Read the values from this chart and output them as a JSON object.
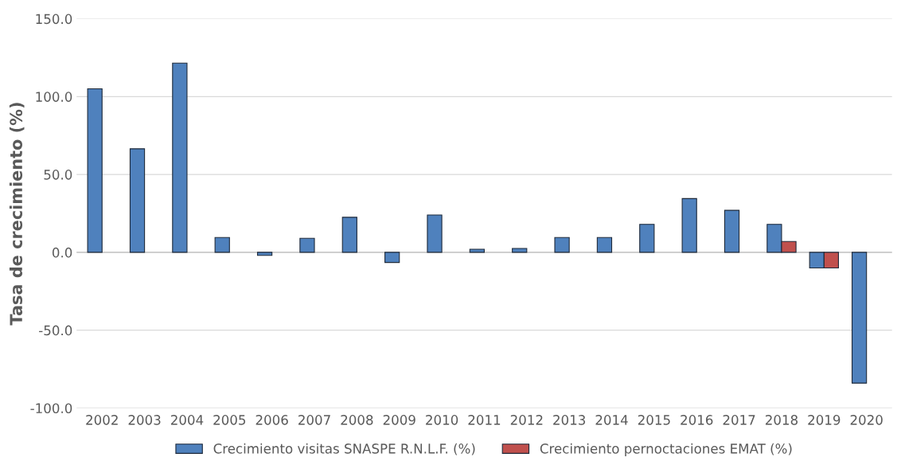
{
  "chart_data": {
    "type": "bar",
    "ylabel": "Tasa de crecimiento (%)",
    "categories": [
      "2002",
      "2003",
      "2004",
      "2005",
      "2006",
      "2007",
      "2008",
      "2009",
      "2010",
      "2011",
      "2012",
      "2013",
      "2014",
      "2015",
      "2016",
      "2017",
      "2018",
      "2019",
      "2020"
    ],
    "series": [
      {
        "name": "Crecimiento visitas SNASPE R.N.L.F. (%)",
        "color": "#4f81bd",
        "values": [
          105,
          66.5,
          121.5,
          9.5,
          -2,
          9,
          22.5,
          -6.5,
          24,
          2,
          2.5,
          9.5,
          9.5,
          18,
          34.5,
          27,
          18,
          -10,
          -84
        ]
      },
      {
        "name": "Crecimiento pernoctaciones EMAT (%)",
        "color": "#c0504d",
        "values": [
          null,
          null,
          null,
          null,
          null,
          null,
          null,
          null,
          null,
          null,
          null,
          null,
          null,
          null,
          null,
          null,
          7,
          -10,
          null
        ]
      }
    ],
    "ylim": [
      -100,
      150
    ],
    "yticks": [
      {
        "value": -100,
        "label": "-100.0"
      },
      {
        "value": -50,
        "label": "-50.0"
      },
      {
        "value": 0,
        "label": "0.0"
      },
      {
        "value": 50,
        "label": "50.0"
      },
      {
        "value": 100,
        "label": "100.0"
      },
      {
        "value": 150,
        "label": "150.0"
      }
    ],
    "grid": "y",
    "legend": "bottom"
  }
}
